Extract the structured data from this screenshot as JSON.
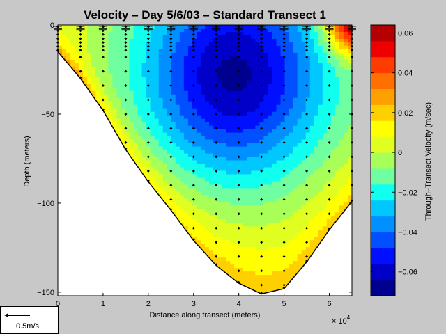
{
  "chart_data": {
    "type": "heatmap",
    "title": "Velocity – Day 5/6/03 – Standard Transect 1",
    "xlabel": "Distance along transect (meters)",
    "ylabel": "Depth (meters)",
    "x_multiplier_label": "× 10",
    "x_multiplier_exponent": "4",
    "xlim": [
      0,
      6.5
    ],
    "ylim": [
      -152,
      0
    ],
    "x_ticks": [
      0,
      1,
      2,
      3,
      4,
      5,
      6
    ],
    "x_tick_labels": [
      "0",
      "1",
      "2",
      "3",
      "4",
      "5",
      "6"
    ],
    "y_ticks": [
      0,
      -50,
      -100,
      -150
    ],
    "y_tick_labels": [
      "0",
      "−50",
      "−100",
      "−150"
    ],
    "bottom_profile": [
      [
        0,
        -15
      ],
      [
        0.5,
        -30
      ],
      [
        1.0,
        -48
      ],
      [
        1.5,
        -70
      ],
      [
        2.0,
        -88
      ],
      [
        2.5,
        -104
      ],
      [
        3.0,
        -121
      ],
      [
        3.5,
        -135
      ],
      [
        4.0,
        -145
      ],
      [
        4.5,
        -151
      ],
      [
        5.0,
        -148
      ],
      [
        5.5,
        -133
      ],
      [
        6.0,
        -115
      ],
      [
        6.5,
        -99
      ]
    ],
    "colorbar": {
      "label": "Through–Transect Velocity (m/sec)",
      "range": [
        -0.072,
        0.064
      ],
      "ticks": [
        0.06,
        0.04,
        0.02,
        0,
        -0.02,
        -0.04,
        -0.06
      ],
      "tick_labels": [
        "0.06",
        "0.04",
        "0.02",
        "0",
        "−0.02",
        "−0.04",
        "−0.06"
      ],
      "colors": [
        "#00008f",
        "#0000c8",
        "#0010ff",
        "#0050ff",
        "#0090ff",
        "#00c8ff",
        "#10ffef",
        "#70ffa0",
        "#a8ff58",
        "#e0ff20",
        "#ffff00",
        "#ffd000",
        "#ffa000",
        "#ff7000",
        "#ff3c00",
        "#ef0000",
        "#b40000"
      ]
    },
    "velocity_model": {
      "core": {
        "x": 3.9,
        "depth": -28,
        "min": -0.066
      },
      "surface_jet": {
        "x": 6.5,
        "depth": 0,
        "max": 0.064
      },
      "bottom_band_value": 0.02
    },
    "station_x": [
      0,
      0.5,
      1.0,
      1.5,
      2.0,
      2.5,
      3.0,
      3.5,
      4.0,
      4.5,
      5.0,
      5.5,
      6.0,
      6.5
    ],
    "bin_spacing": 8
  },
  "vector_scale_label": "0.5m/s",
  "colors": {
    "background": "#c8c8c8",
    "axes_face": "#ffffff",
    "marker": "#000000"
  }
}
